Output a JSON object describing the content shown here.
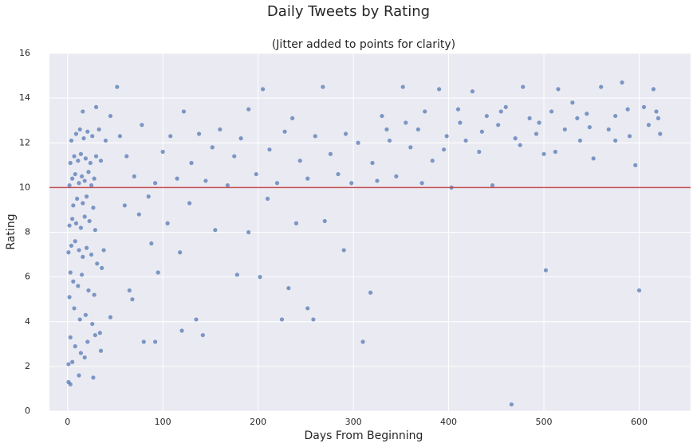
{
  "chart_data": {
    "type": "scatter",
    "title": "Daily Tweets by Rating",
    "subtitle": "(Jitter added to points for clarity)",
    "xlabel": "Days From Beginning",
    "ylabel": "Rating",
    "color": "#4c72b0",
    "background": "#eaeaf2",
    "grid": true,
    "hline": {
      "value": 10,
      "color": "#c44e52"
    },
    "xlim": [
      -19,
      654
    ],
    "ylim": [
      0,
      16
    ],
    "xticks": [
      0,
      100,
      200,
      300,
      400,
      500,
      600
    ],
    "yticks": [
      0,
      2,
      4,
      6,
      8,
      10,
      12,
      14,
      16
    ],
    "x": [
      2,
      5,
      8,
      12,
      15,
      18,
      22,
      25,
      28,
      3,
      7,
      11,
      14,
      19,
      24,
      30,
      35,
      4,
      9,
      13,
      17,
      21,
      26,
      33,
      40,
      6,
      10,
      16,
      20,
      27,
      2,
      5,
      9,
      14,
      18,
      23,
      29,
      1,
      4,
      8,
      12,
      16,
      20,
      25,
      31,
      38,
      3,
      6,
      11,
      15,
      22,
      28,
      36,
      2,
      7,
      13,
      19,
      26,
      34,
      45,
      3,
      8,
      14,
      21,
      29,
      5,
      12,
      18,
      27,
      1,
      3,
      1,
      35,
      52,
      30,
      16,
      45,
      55,
      62,
      70,
      78,
      85,
      92,
      100,
      108,
      115,
      122,
      130,
      138,
      145,
      152,
      160,
      168,
      175,
      182,
      190,
      198,
      205,
      212,
      220,
      228,
      236,
      244,
      252,
      260,
      268,
      276,
      284,
      292,
      298,
      60,
      75,
      88,
      95,
      105,
      118,
      128,
      135,
      142,
      155,
      178,
      190,
      202,
      210,
      225,
      232,
      240,
      252,
      258,
      270,
      290,
      65,
      80,
      92,
      120,
      68,
      305,
      310,
      318,
      320,
      330,
      338,
      345,
      352,
      360,
      368,
      375,
      383,
      390,
      398,
      403,
      410,
      418,
      425,
      432,
      440,
      446,
      452,
      460,
      466,
      470,
      478,
      485,
      492,
      500,
      502,
      508,
      515,
      522,
      530,
      538,
      545,
      552,
      560,
      568,
      575,
      582,
      590,
      596,
      600,
      605,
      610,
      615,
      620,
      622,
      325,
      355,
      395,
      435,
      475,
      512,
      548,
      588,
      618,
      335,
      372,
      412,
      455,
      495,
      535,
      575
    ],
    "y": [
      10.1,
      10.4,
      10.6,
      10.2,
      10.5,
      10.3,
      10.7,
      10.1,
      10.4,
      11.1,
      11.4,
      11.2,
      11.5,
      11.3,
      11.1,
      11.4,
      11.2,
      12.1,
      12.4,
      12.6,
      12.2,
      12.5,
      12.3,
      12.6,
      12.1,
      9.2,
      9.5,
      9.3,
      9.6,
      9.1,
      8.3,
      8.6,
      8.4,
      8.2,
      8.7,
      8.5,
      8.1,
      7.1,
      7.4,
      7.6,
      7.2,
      6.9,
      7.3,
      7.0,
      6.6,
      7.2,
      6.2,
      5.8,
      5.6,
      6.1,
      5.4,
      5.2,
      6.4,
      5.1,
      4.6,
      4.1,
      4.3,
      3.9,
      3.5,
      4.2,
      3.3,
      2.9,
      2.6,
      3.1,
      3.4,
      2.2,
      1.6,
      2.4,
      1.5,
      1.3,
      1.2,
      2.1,
      2.7,
      14.5,
      13.6,
      13.4,
      13.2,
      12.3,
      11.4,
      10.5,
      12.8,
      9.6,
      10.2,
      11.6,
      12.3,
      10.4,
      13.4,
      11.1,
      12.4,
      10.3,
      11.8,
      12.6,
      10.1,
      11.4,
      12.2,
      13.5,
      10.6,
      14.4,
      11.7,
      10.2,
      12.5,
      13.1,
      11.2,
      10.4,
      12.3,
      14.5,
      11.5,
      10.6,
      12.4,
      10.2,
      9.2,
      8.8,
      7.5,
      6.2,
      8.4,
      7.1,
      9.3,
      4.1,
      3.4,
      8.1,
      6.1,
      8.0,
      6.0,
      9.5,
      4.1,
      5.5,
      8.4,
      4.6,
      4.1,
      8.5,
      7.2,
      5.4,
      3.1,
      3.1,
      3.6,
      5.0,
      12.0,
      3.1,
      5.3,
      11.1,
      13.2,
      12.1,
      10.5,
      14.5,
      11.8,
      12.6,
      13.4,
      11.2,
      14.4,
      12.3,
      10.0,
      13.5,
      12.1,
      14.3,
      11.6,
      13.2,
      10.1,
      12.8,
      13.6,
      0.3,
      12.2,
      14.5,
      13.1,
      12.4,
      11.5,
      6.3,
      13.4,
      14.4,
      12.6,
      13.8,
      12.1,
      13.3,
      11.3,
      14.5,
      12.6,
      13.2,
      14.7,
      12.3,
      11.0,
      5.4,
      13.6,
      12.8,
      14.4,
      13.1,
      12.4,
      10.3,
      12.9,
      11.7,
      12.5,
      11.9,
      11.6,
      12.7,
      13.5,
      13.4,
      12.6,
      10.2,
      12.9,
      13.4,
      12.9,
      13.1,
      12.1
    ]
  }
}
